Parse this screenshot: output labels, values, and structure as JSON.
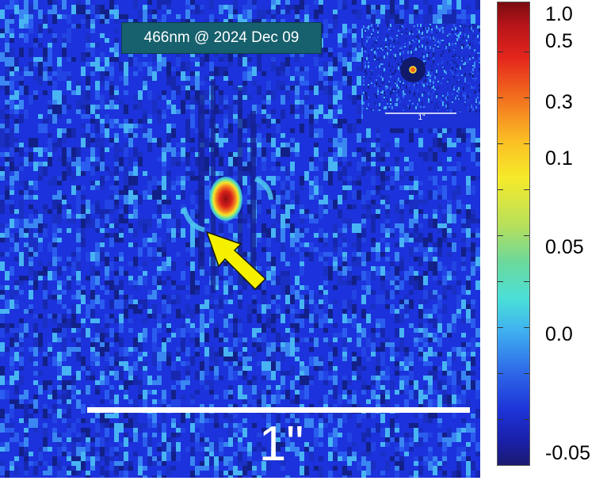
{
  "image": {
    "caption": "466nm @ 2024 Dec 09",
    "scale_bar_label": "1\"",
    "inset_scale_bar_label": "1\"",
    "annotation": "yellow-arrow-pointing-to-source"
  },
  "colorbar": {
    "labels": [
      "1.0",
      "0.5",
      "0.3",
      "0.1",
      "0.05",
      "0.0",
      "-0.05"
    ],
    "colormap": "jet",
    "colors": {
      "max": "#7a0c10",
      "mid_yellow": "#f6ea2a",
      "mid_cyan": "#4ae0d8",
      "min": "#1b1a6e"
    }
  },
  "colors": {
    "background_blue": "#1c32dc",
    "caption_bg": "#17606d",
    "arrow": "#f4f000",
    "scale_bar": "#ffffff"
  }
}
